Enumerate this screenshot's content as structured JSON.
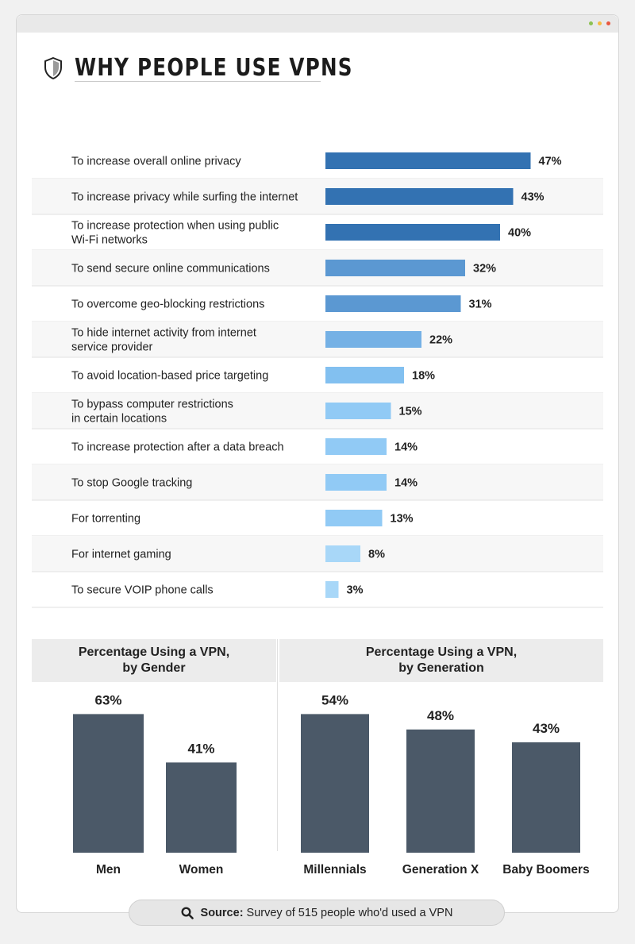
{
  "page": {
    "title": "WHY PEOPLE USE VPNS"
  },
  "source": {
    "label": "Source:",
    "text": "Survey of 515 people who'd used a VPN"
  },
  "chart_data": [
    {
      "type": "bar",
      "orientation": "horizontal",
      "title": "",
      "categories": [
        "To increase overall online privacy",
        "To increase privacy while surfing the internet",
        "To increase protection when using public\nWi-Fi networks",
        "To send secure online communications",
        "To overcome geo-blocking restrictions",
        "To hide internet activity from internet\nservice provider",
        "To avoid location-based price targeting",
        "To bypass computer restrictions\nin certain locations",
        "To increase protection after a data breach",
        "To stop Google tracking",
        "For torrenting",
        "For internet gaming",
        "To secure VOIP phone calls"
      ],
      "values": [
        47,
        43,
        40,
        32,
        31,
        22,
        18,
        15,
        14,
        14,
        13,
        8,
        3
      ],
      "value_suffix": "%",
      "xlim": [
        0,
        50
      ],
      "colors": [
        "#3372b2",
        "#3372b2",
        "#3372b2",
        "#5b98d2",
        "#5b98d2",
        "#75b1e5",
        "#82c0f0",
        "#91caf5",
        "#91caf5",
        "#91caf5",
        "#91caf5",
        "#a8d7f8",
        "#a8d7f8"
      ]
    },
    {
      "type": "bar",
      "title": "Percentage Using a VPN,\nby Gender",
      "categories": [
        "Men",
        "Women"
      ],
      "values": [
        63,
        41
      ],
      "value_suffix": "%",
      "ylim": [
        0,
        70
      ],
      "color": "#4b5968"
    },
    {
      "type": "bar",
      "title": "Percentage Using a VPN,\nby Generation",
      "categories": [
        "Millennials",
        "Generation X",
        "Baby Boomers"
      ],
      "values": [
        54,
        48,
        43
      ],
      "value_suffix": "%",
      "ylim": [
        0,
        60
      ],
      "color": "#4b5968"
    }
  ],
  "colors": {
    "row_stripe": "#f7f7f7",
    "row_divider": "#e2e2e2",
    "column_bar": "#4b5968",
    "section_header_bg": "#ececec"
  },
  "icons": {
    "title_icon": "shield-icon",
    "source_icon": "search-icon"
  }
}
